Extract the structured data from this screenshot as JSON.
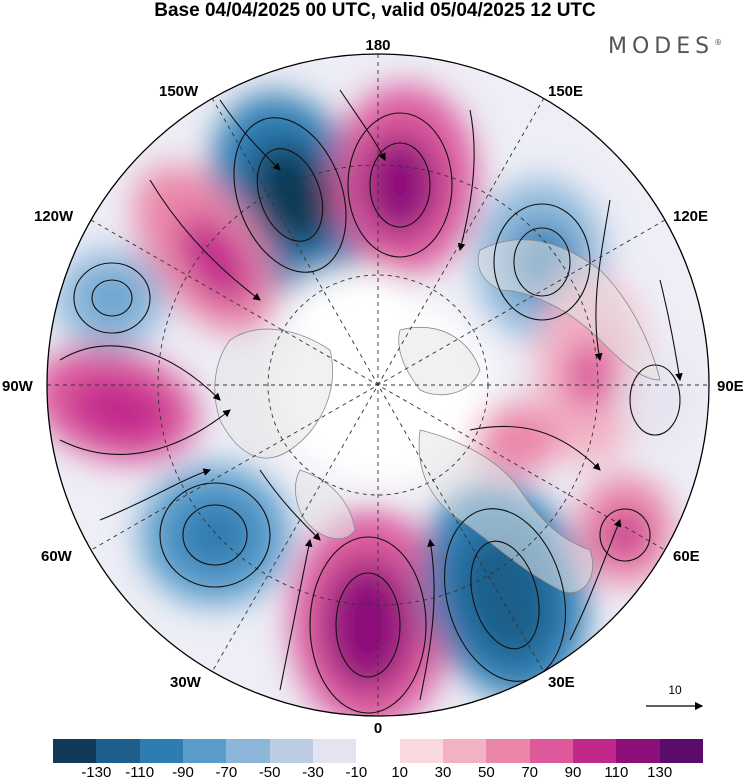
{
  "header": {
    "title": "Base 04/04/2025 00 UTC, valid 05/04/2025 12 UTC",
    "brand": "MODES",
    "brand_mark": "®"
  },
  "map": {
    "projection": "north polar stereographic",
    "longitude_labels": {
      "top": "180",
      "bottom": "0",
      "left": "90W",
      "right": "90E",
      "upper_left_1": "150W",
      "upper_left_2": "120W",
      "upper_right_1": "150E",
      "upper_right_2": "120E",
      "lower_left_1": "60W",
      "lower_left_2": "30W",
      "lower_right_1": "60E",
      "lower_right_2": "30E"
    },
    "wind_reference_label": "10",
    "colors": {
      "land": "#ececec",
      "coast": "#8a8a8a",
      "graticule": "#333333"
    }
  },
  "legend": {
    "colors": [
      "#103a57",
      "#1d5f8a",
      "#2e7db2",
      "#5a9ccb",
      "#8db7da",
      "#bccde3",
      "#e4e4f0",
      "#ffffff",
      "#f9d8e0",
      "#f3b2c4",
      "#ea86a8",
      "#dc5a9c",
      "#c1288c",
      "#8e0e7a",
      "#5a0b6c"
    ],
    "ticks": [
      "-130",
      "-110",
      "-90",
      "-70",
      "-50",
      "-30",
      "-10",
      "10",
      "30",
      "50",
      "70",
      "90",
      "110",
      "130"
    ]
  }
}
